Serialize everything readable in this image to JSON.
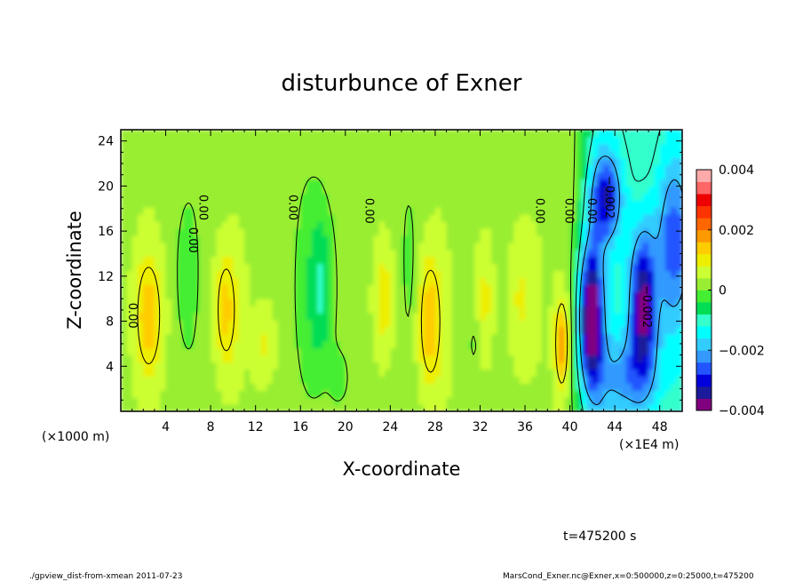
{
  "chart_data": {
    "type": "heatmap",
    "title": "disturbunce of Exner",
    "xlabel": "X-coordinate",
    "ylabel": "Z-coordinate",
    "x_unit_left": "(×1000 m)",
    "x_unit_right": "(×1E4 m)",
    "xlim": [
      0,
      50
    ],
    "ylim": [
      0,
      25
    ],
    "x_ticks": [
      4,
      8,
      12,
      16,
      20,
      24,
      28,
      32,
      36,
      40,
      44,
      48
    ],
    "x_tick_labels": [
      "4",
      "8",
      "12",
      "16",
      "20",
      "24",
      "28",
      "32",
      "36",
      "40",
      "44",
      "48"
    ],
    "y_ticks": [
      4,
      8,
      12,
      16,
      20,
      24
    ],
    "y_tick_labels": [
      "4",
      "8",
      "12",
      "16",
      "20",
      "24"
    ],
    "colorbar": {
      "min": -0.004,
      "max": 0.004,
      "tick_values": [
        0.004,
        0.002,
        0,
        -0.002,
        -0.004
      ],
      "tick_labels": [
        "0.004",
        "0.002",
        "0",
        "−0.002",
        "−0.004"
      ],
      "colors": [
        "#800080",
        "#1a1a9a",
        "#0000dd",
        "#2255ff",
        "#3399ff",
        "#33ccff",
        "#00ffff",
        "#33ffcc",
        "#00dd55",
        "#44ee33",
        "#99ee33",
        "#ccff33",
        "#eeee00",
        "#ffcc00",
        "#ff9900",
        "#ff6600",
        "#ff3300",
        "#ee0000",
        "#ff6666",
        "#ffaaaa"
      ]
    },
    "contour_labels": [
      {
        "text": "0.00",
        "x": 0.7,
        "z": 8.5
      },
      {
        "text": "0.00",
        "x": 6.1,
        "z": 15.2
      },
      {
        "text": "0.00",
        "x": 7.0,
        "z": 18.1
      },
      {
        "text": "0.00",
        "x": 15.0,
        "z": 18.1
      },
      {
        "text": "0.00",
        "x": 21.8,
        "z": 17.8
      },
      {
        "text": "0.00",
        "x": 37.0,
        "z": 17.8
      },
      {
        "text": "0.00",
        "x": 39.6,
        "z": 17.8
      },
      {
        "text": "0.00",
        "x": 41.6,
        "z": 17.8
      },
      {
        "text": "−0.002",
        "x": 43.2,
        "z": 19.0
      },
      {
        "text": "−0.002",
        "x": 46.5,
        "z": 9.3
      }
    ],
    "time_label": "t=475200 s"
  },
  "footer": {
    "left": "./gpview_dist-from-xmean  2011-07-23",
    "right": "MarsCond_Exner.nc@Exner,x=0:500000,z=0:25000,t=475200"
  }
}
